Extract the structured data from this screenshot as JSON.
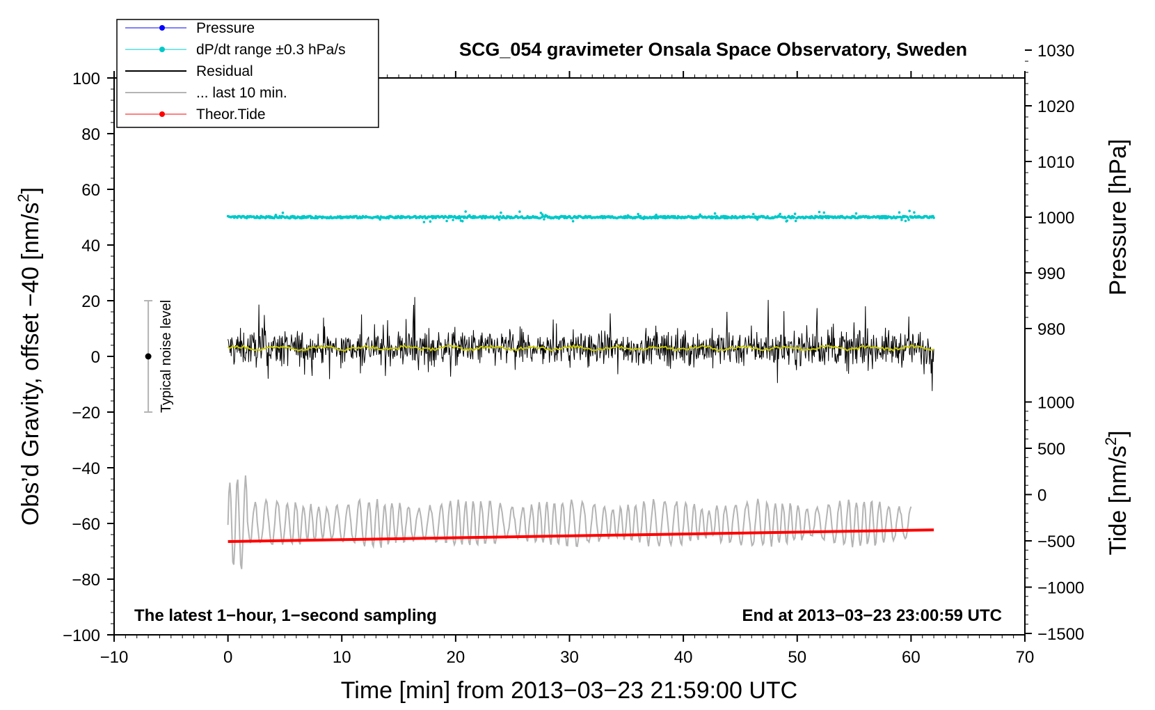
{
  "chart_data": {
    "type": "line",
    "title": "SCG_054 gravimeter Onsala Space Observatory, Sweden",
    "xlabel": "Time [min] from 2013−03−23 21:59:00 UTC",
    "xlim": [
      -10,
      70
    ],
    "x_ticks": [
      {
        "v": -10,
        "label": "−10"
      },
      {
        "v": 0,
        "label": "0"
      },
      {
        "v": 10,
        "label": "10"
      },
      {
        "v": 20,
        "label": "20"
      },
      {
        "v": 30,
        "label": "30"
      },
      {
        "v": 40,
        "label": "40"
      },
      {
        "v": 50,
        "label": "50"
      },
      {
        "v": 60,
        "label": "60"
      },
      {
        "v": 70,
        "label": "70"
      }
    ],
    "left_axis": {
      "label": "Obs’d Gravity, offset −40 [nm/s²]",
      "label_main": "Obs’d Gravity, offset −40 [nm/s",
      "label_sup": "2",
      "label_close": "]",
      "range": [
        -100,
        100
      ],
      "ticks": [
        {
          "v": 100,
          "label": "100"
        },
        {
          "v": 80,
          "label": "80"
        },
        {
          "v": 60,
          "label": "60"
        },
        {
          "v": 40,
          "label": "40"
        },
        {
          "v": 20,
          "label": "20"
        },
        {
          "v": 0,
          "label": "0"
        },
        {
          "v": -20,
          "label": "−20"
        },
        {
          "v": -40,
          "label": "−40"
        },
        {
          "v": -60,
          "label": "−60"
        },
        {
          "v": -80,
          "label": "−80"
        },
        {
          "v": -100,
          "label": "−100"
        }
      ]
    },
    "right_pressure_axis": {
      "label": "Pressure [hPa]",
      "ticks": [
        {
          "v": 1030,
          "label": "1030"
        },
        {
          "v": 1020,
          "label": "1020"
        },
        {
          "v": 1010,
          "label": "1010"
        },
        {
          "v": 1000,
          "label": "1000"
        },
        {
          "v": 990,
          "label": "990"
        },
        {
          "v": 980,
          "label": "980"
        }
      ]
    },
    "right_tide_axis": {
      "label": "Tide [nm/s²]",
      "label_main": "Tide [nm/s",
      "label_sup": "2",
      "label_close": "]",
      "ticks": [
        {
          "v": 1000,
          "label": "1000"
        },
        {
          "v": 500,
          "label": "500"
        },
        {
          "v": 0,
          "label": "0"
        },
        {
          "v": -500,
          "label": "−500"
        },
        {
          "v": -1000,
          "label": "−1000"
        },
        {
          "v": -1500,
          "label": "−1500"
        }
      ]
    },
    "legend": {
      "position": "top-left",
      "entries": [
        {
          "label": "Pressure",
          "color": "#0000ff",
          "style": "line-dot"
        },
        {
          "label": "dP/dt range ±0.3 hPa/s",
          "color": "#00c8c8",
          "style": "line-dot"
        },
        {
          "label": "Residual",
          "color": "#000000",
          "style": "line"
        },
        {
          "label": "... last 10 min.",
          "color": "#b4b4b4",
          "style": "line"
        },
        {
          "label": "Theor.Tide",
          "color": "#ff0000",
          "style": "line-dot"
        }
      ]
    },
    "series": [
      {
        "name": "dP/dt range",
        "color": "#00c8c8",
        "x_range": [
          0,
          62
        ],
        "center": 50,
        "spread": 0.8
      },
      {
        "name": "Residual",
        "color": "#000000",
        "x_range": [
          0,
          62
        ],
        "center": 3,
        "spread": 8
      },
      {
        "name": "Residual smoothed",
        "color": "#c8c800",
        "x_range": [
          0,
          62
        ],
        "center": 3
      },
      {
        "name": "... last 10 min.",
        "color": "#b4b4b4",
        "x_range": [
          0,
          60
        ],
        "center": -60,
        "spread": 8
      },
      {
        "name": "Theor.Tide",
        "color": "#ff0000",
        "x": [
          0,
          62
        ],
        "y": [
          -66.5,
          -62.3
        ]
      }
    ],
    "noise_bar": {
      "label": "Typical noise level",
      "x": -7,
      "y": 0,
      "range": [
        -20,
        20
      ]
    },
    "annotations": {
      "bottom_left": "The latest 1−hour, 1−second sampling",
      "bottom_right": "End at 2013−03−23 23:00:59 UTC"
    }
  }
}
